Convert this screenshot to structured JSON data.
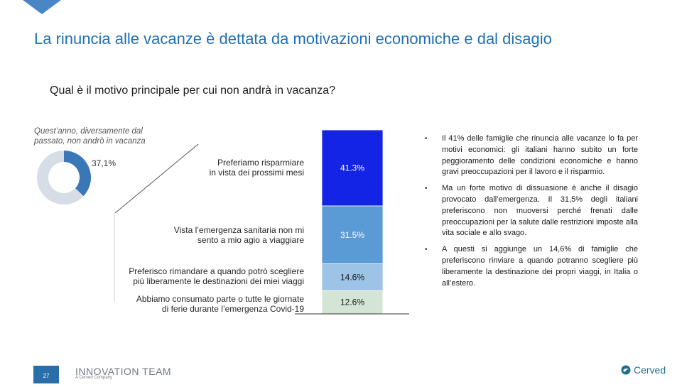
{
  "title": "La rinuncia alle vacanze è dettata da motivazioni economiche e dal disagio",
  "question": "Qual è il motivo principale per cui non andrà in vacanza?",
  "donut": {
    "caption": "Quest’anno, diversamente dal passato, non andrò in vacanza",
    "value_label": "37,1%",
    "value": 37.1,
    "colors": {
      "share": "#3a77b7",
      "rest": "#d6dde7"
    }
  },
  "chart_data": {
    "type": "bar",
    "stacked": true,
    "categories": [
      "Preferiamo risparmiare in vista dei prossimi mesi",
      "Vista l’emergenza sanitaria non mi sento a mio agio a viaggiare",
      "Preferisco rimandare a quando potrò scegliere più liberamente le destinazioni dei miei viaggi",
      "Abbiamo consumato parte o tutte le giornate di ferie durante l’emergenza Covid-19"
    ],
    "values": [
      41.3,
      31.5,
      14.6,
      12.6
    ],
    "value_labels": [
      "41.3%",
      "31.5%",
      "14.6%",
      "12.6%"
    ],
    "colors": [
      "#1424e6",
      "#5b9bd5",
      "#9dc3e6",
      "#d5e5d5"
    ],
    "label_colors": [
      "#ffffff",
      "#ffffff",
      "#1a1a1a",
      "#1a1a1a"
    ],
    "label_lines": [
      [
        "Preferiamo risparmiare",
        "in vista dei prossimi mesi"
      ],
      [
        "Vista l’emergenza sanitaria non mi",
        "sento a mio agio a viaggiare"
      ],
      [
        "Preferisco rimandare a quando potrò scegliere",
        "più liberamente le destinazioni dei miei viaggi"
      ],
      [
        "Abbiamo consumato parte o tutte le giornate",
        "di ferie durante l’emergenza Covid-19"
      ]
    ]
  },
  "bullets": [
    "Il 41% delle famiglie che rinuncia alle vacanze lo fa per motivi economici: gli italiani hanno subito un forte peggioramento delle condizioni economiche e hanno gravi preoccupazioni per il lavoro e il risparmio.",
    "Ma un forte motivo di dissuasione è anche il disagio provocato dall’emergenza. Il 31,5% degli italiani preferiscono non muoversi perché frenati dalle preoccupazioni per la salute dalle restrizioni imposte alla vita sociale e allo svago.",
    "A questi si aggiunge un 14,6% di famiglie che preferiscono rinviare a quando potranno scegliere più liberamente la destinazione dei propri viaggi, in Italia o all’estero."
  ],
  "bullet_symbol": "•",
  "page_number": "27",
  "footer": {
    "left_brand": "INNOVATION TEAM",
    "left_sub": "A Cerved Company",
    "right_brand": "Cerved",
    "right_icon": "cerved-swirl-icon"
  },
  "colors": {
    "title": "#1f6fb4",
    "accent": "#2a6ea9"
  }
}
